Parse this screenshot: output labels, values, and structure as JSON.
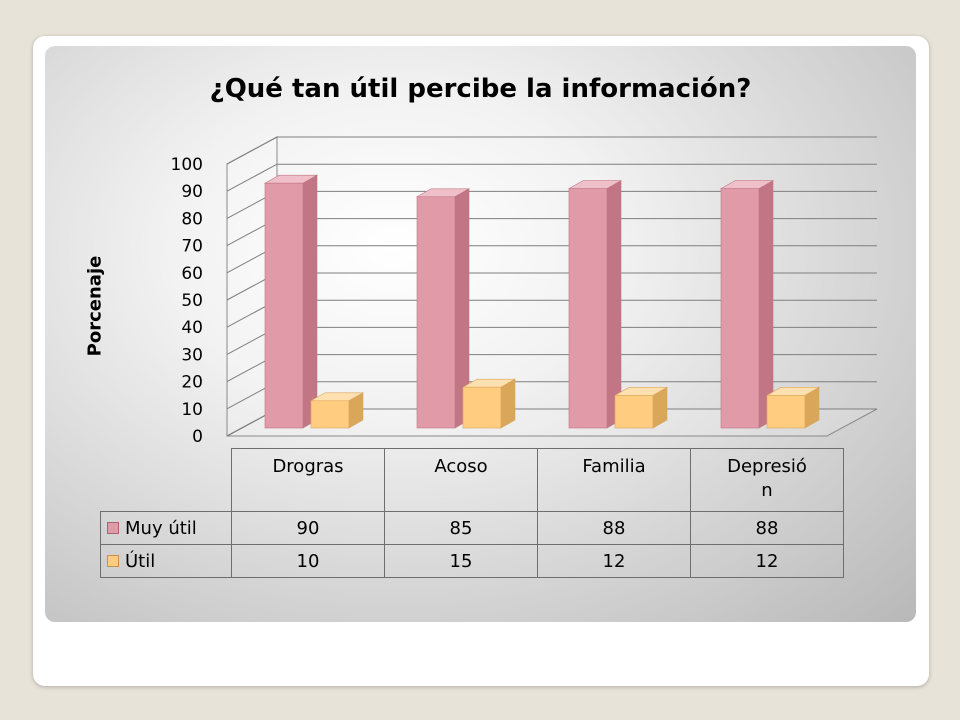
{
  "colors": {
    "muy_util": "#e19aa8",
    "util": "#ffcc80"
  },
  "chart_data": {
    "type": "bar",
    "title": "¿Qué tan útil percibe la información?",
    "ylabel": "Porcenaje",
    "xlabel": "",
    "ylim": [
      0,
      100
    ],
    "yticks": [
      "0",
      "10",
      "20",
      "30",
      "40",
      "50",
      "60",
      "70",
      "80",
      "90",
      "100"
    ],
    "grid": true,
    "legend": "data table",
    "categories": [
      "Drogras",
      "Acoso",
      "Familia",
      "Depresió\nn"
    ],
    "series": [
      {
        "name": "Muy útil",
        "values": [
          90,
          85,
          88,
          88
        ],
        "color": "#e19aa8"
      },
      {
        "name": "Útil",
        "values": [
          10,
          15,
          12,
          12
        ],
        "color": "#ffcc80"
      }
    ]
  }
}
